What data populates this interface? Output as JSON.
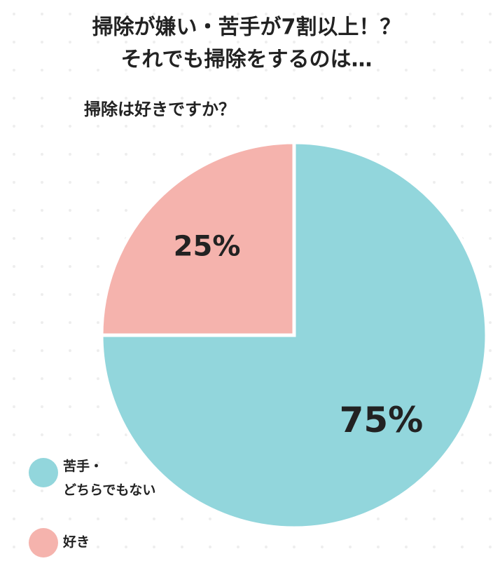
{
  "chart_data": {
    "type": "pie",
    "title": [
      "掃除が嫌い・苦手が7割以上！？",
      "それでも掃除をするのは…"
    ],
    "subtitle": "掃除は好きですか？",
    "categories": [
      "苦手・どちらでもない",
      "好き"
    ],
    "values": [
      75,
      25
    ],
    "value_labels": [
      "75%",
      "25%"
    ],
    "colors": [
      "#92d6dc",
      "#f5b3ad"
    ],
    "legend": "bottom-left"
  }
}
